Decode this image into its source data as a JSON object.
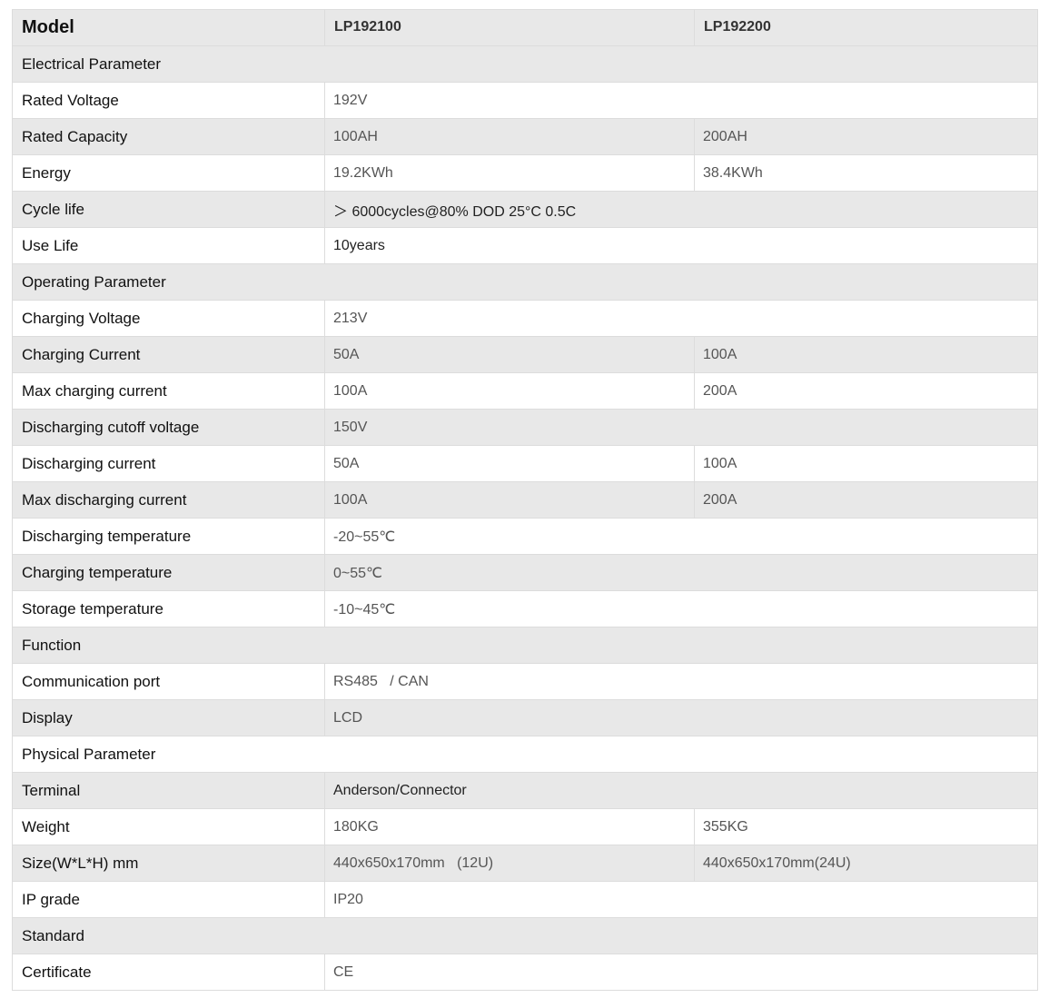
{
  "header": {
    "label": "Model",
    "models": [
      "LP192100",
      "LP192200"
    ]
  },
  "rows": [
    {
      "section": "Electrical Parameter"
    },
    {
      "label": "Rated Voltage",
      "values": [
        "192V"
      ]
    },
    {
      "label": "Rated Capacity",
      "values": [
        "100AH",
        "200AH"
      ]
    },
    {
      "label": "Energy",
      "values": [
        "19.2KWh",
        "38.4KWh"
      ]
    },
    {
      "label": "Cycle life",
      "values": [
        "＞ 6000cycles@80% DOD 25°C 0.5C"
      ],
      "dark": true
    },
    {
      "label": "Use Life",
      "values": [
        "10years"
      ],
      "dark": true
    },
    {
      "section": "Operating Parameter"
    },
    {
      "label": "Charging Voltage",
      "values": [
        "213V"
      ]
    },
    {
      "label": "Charging Current",
      "values": [
        "50A",
        "100A"
      ]
    },
    {
      "label": "Max charging current",
      "values": [
        "100A",
        "200A"
      ]
    },
    {
      "label": "Discharging cutoff voltage",
      "values": [
        "150V"
      ]
    },
    {
      "label": "Discharging current",
      "values": [
        "50A",
        "100A"
      ]
    },
    {
      "label": "Max discharging current",
      "values": [
        "100A",
        "200A"
      ]
    },
    {
      "label": "Discharging temperature",
      "values": [
        "-20~55℃"
      ]
    },
    {
      "label": "Charging temperature",
      "values": [
        "0~55℃"
      ]
    },
    {
      "label": "Storage temperature",
      "values": [
        "-10~45℃"
      ]
    },
    {
      "section": "Function"
    },
    {
      "label": "Communication port",
      "values": [
        "RS485   / CAN"
      ]
    },
    {
      "label": "Display",
      "values": [
        "LCD"
      ]
    },
    {
      "section": "Physical Parameter"
    },
    {
      "label": "Terminal",
      "values": [
        "Anderson/Connector"
      ],
      "dark": true
    },
    {
      "label": "Weight",
      "values": [
        "180KG",
        "355KG"
      ]
    },
    {
      "label": "Size(W*L*H) mm",
      "values": [
        "440x650x170mm   (12U)",
        "440x650x170mm(24U)"
      ]
    },
    {
      "label": "IP grade",
      "values": [
        "IP20"
      ]
    },
    {
      "section": "Standard"
    },
    {
      "label": "Certificate",
      "values": [
        "CE"
      ]
    }
  ]
}
